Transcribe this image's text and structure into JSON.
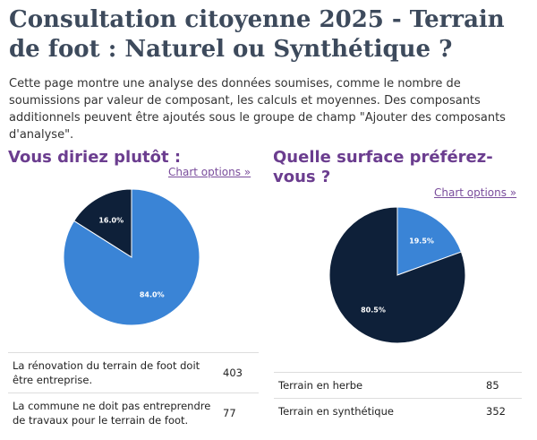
{
  "page": {
    "title": "Consultation citoyenne 2025 - Terrain de foot : Naturel ou Synthétique ?",
    "intro": "Cette page montre une analyse des données soumises, comme le nombre de soumissions par valeur de composant, les calculs et moyennes. Des composants additionnels peuvent être ajoutés sous le groupe de champ \"Ajouter des composants d'analyse\"."
  },
  "panels": [
    {
      "title": "Vous diriez plutôt :",
      "options_label": "Chart options »",
      "rows": [
        {
          "label": "La rénovation du terrain de foot doit être entreprise.",
          "count": "403"
        },
        {
          "label": "La commune ne doit pas entreprendre de travaux pour le terrain de foot.",
          "count": "77"
        }
      ]
    },
    {
      "title": "Quelle surface préférez-vous ?",
      "options_label": "Chart options »",
      "rows": [
        {
          "label": "Terrain en herbe",
          "count": "85"
        },
        {
          "label": "Terrain en synthétique",
          "count": "352"
        }
      ]
    }
  ],
  "chart_data": [
    {
      "type": "pie",
      "title": "Vous diriez plutôt :",
      "categories": [
        "La rénovation du terrain de foot doit être entreprise.",
        "La commune ne doit pas entreprendre de travaux pour le terrain de foot."
      ],
      "values": [
        403,
        77
      ],
      "slice_labels": [
        "84.0%",
        "16.0%"
      ],
      "colors": [
        "#3a84d6",
        "#0e2039"
      ]
    },
    {
      "type": "pie",
      "title": "Quelle surface préférez-vous ?",
      "categories": [
        "Terrain en herbe",
        "Terrain en synthétique"
      ],
      "values": [
        85,
        352
      ],
      "slice_labels": [
        "19.5%",
        "80.5%"
      ],
      "colors": [
        "#3a84d6",
        "#0e2039"
      ]
    }
  ]
}
